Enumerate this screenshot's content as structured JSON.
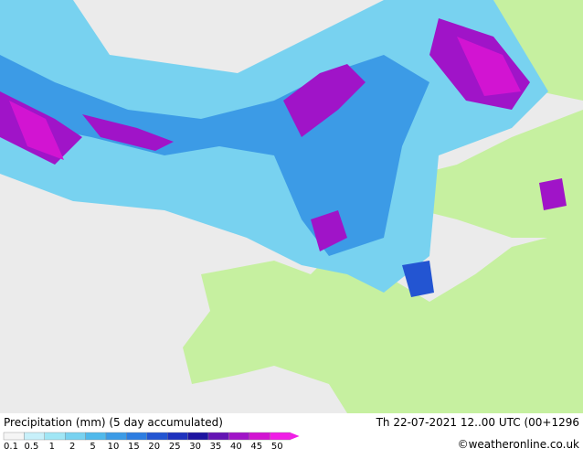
{
  "legend": {
    "title": "Precipitation (mm) (5 day accumulated)",
    "labels": [
      "0.1",
      "0.5",
      "1",
      "2",
      "5",
      "10",
      "15",
      "20",
      "25",
      "30",
      "35",
      "40",
      "45",
      "50"
    ],
    "colors": [
      "#f5f5f5",
      "#c8f0fa",
      "#a0e6f5",
      "#78d2f0",
      "#50b9eb",
      "#3c9be6",
      "#2d7de1",
      "#2355d2",
      "#1e32be",
      "#1e14a0",
      "#6414b4",
      "#a014c8",
      "#d214d2",
      "#f01ee6"
    ]
  },
  "footer": {
    "valid_time": "Th 22-07-2021 12..00 UTC (00+1296",
    "credit": "©weatheronline.co.uk"
  }
}
